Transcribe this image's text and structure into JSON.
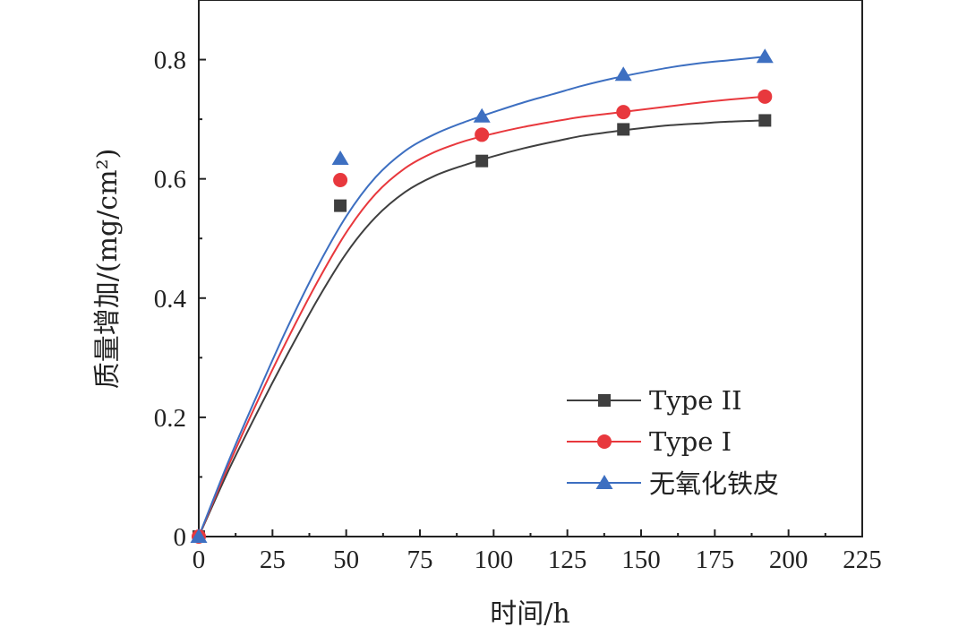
{
  "chart_data": {
    "type": "scatter",
    "title": "",
    "xlabel": "时间/h",
    "ylabel": "质量增加/(mg/cm²)",
    "xlim": [
      0,
      225
    ],
    "ylim": [
      0,
      0.9
    ],
    "xticks": [
      0,
      25,
      50,
      75,
      100,
      125,
      150,
      175,
      200,
      225
    ],
    "xtick_labels": [
      "0",
      "25",
      "50",
      "75",
      "100",
      "125",
      "150",
      "175",
      "200",
      "225"
    ],
    "yticks": [
      0,
      0.2,
      0.4,
      0.6,
      0.8
    ],
    "ytick_labels": [
      "0",
      "0.2",
      "0.4",
      "0.6",
      "0.8"
    ],
    "grid": false,
    "legend_position": "bottom-right",
    "series": [
      {
        "name": "Type II",
        "color": "#3f3f3f",
        "marker": "square",
        "x": [
          0,
          48,
          96,
          144,
          192
        ],
        "y": [
          0,
          0.555,
          0.63,
          0.683,
          0.698
        ],
        "fit_x": [
          0,
          10,
          20,
          30,
          40,
          50,
          60,
          70,
          80,
          90,
          100,
          110,
          120,
          130,
          140,
          150,
          160,
          170,
          180,
          192
        ],
        "fit_y": [
          0,
          0.11,
          0.21,
          0.305,
          0.395,
          0.475,
          0.536,
          0.578,
          0.605,
          0.623,
          0.638,
          0.651,
          0.662,
          0.672,
          0.679,
          0.685,
          0.69,
          0.693,
          0.696,
          0.698
        ]
      },
      {
        "name": "Type I",
        "color": "#e8383d",
        "marker": "circle",
        "x": [
          0,
          48,
          96,
          144,
          192
        ],
        "y": [
          0,
          0.598,
          0.674,
          0.712,
          0.738
        ],
        "fit_x": [
          0,
          10,
          20,
          30,
          40,
          50,
          60,
          70,
          80,
          90,
          100,
          110,
          120,
          130,
          140,
          150,
          160,
          170,
          180,
          192
        ],
        "fit_y": [
          0,
          0.118,
          0.228,
          0.33,
          0.425,
          0.51,
          0.575,
          0.618,
          0.645,
          0.663,
          0.676,
          0.687,
          0.696,
          0.704,
          0.71,
          0.716,
          0.722,
          0.728,
          0.733,
          0.738
        ]
      },
      {
        "name": "无氧化铁皮",
        "color": "#3d6fc1",
        "marker": "triangle",
        "x": [
          0,
          48,
          96,
          144,
          192
        ],
        "y": [
          0,
          0.634,
          0.705,
          0.775,
          0.805
        ],
        "fit_x": [
          0,
          10,
          20,
          30,
          40,
          50,
          60,
          70,
          80,
          90,
          100,
          110,
          120,
          130,
          140,
          150,
          160,
          170,
          180,
          192
        ],
        "fit_y": [
          0,
          0.125,
          0.24,
          0.35,
          0.45,
          0.537,
          0.603,
          0.647,
          0.675,
          0.695,
          0.712,
          0.728,
          0.742,
          0.756,
          0.768,
          0.778,
          0.787,
          0.794,
          0.799,
          0.805
        ]
      }
    ]
  }
}
